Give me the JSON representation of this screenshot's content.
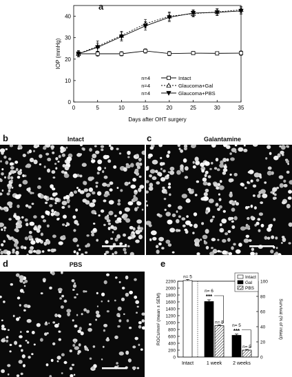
{
  "panels": {
    "a": {
      "letter": "a"
    },
    "b": {
      "letter": "b",
      "title": "Intact"
    },
    "c": {
      "letter": "c",
      "title": "Galantamine"
    },
    "d": {
      "letter": "d",
      "title": "PBS"
    },
    "e": {
      "letter": "e"
    }
  },
  "colors": {
    "micro_bg": "#0a0a0a",
    "cells": "#e8e8e8",
    "scale_bar": "#ffffff",
    "bar_intact": "#ffffff",
    "bar_gal": "#000000",
    "bar_pbs": "hatched"
  },
  "chart_data": [
    {
      "id": "a",
      "type": "line",
      "xlabel": "Days after OHT surgery",
      "ylabel": "IOP (mmHg)",
      "xlim": [
        0,
        35
      ],
      "ylim": [
        0,
        45
      ],
      "xticks": [
        0,
        5,
        10,
        15,
        20,
        25,
        30,
        35
      ],
      "yticks": [
        0,
        10,
        20,
        30,
        40
      ],
      "grid": false,
      "legend_position": "bottom-right",
      "series": [
        {
          "name": "Intact",
          "n_label": "n=4",
          "marker": "square-open",
          "x": [
            1,
            5,
            10,
            15,
            20,
            25,
            30,
            35
          ],
          "y": [
            22.5,
            22.5,
            22.5,
            23.8,
            22.6,
            22.8,
            22.7,
            22.8
          ],
          "err": [
            1.0,
            1.2,
            1.0,
            1.0,
            1.0,
            0.8,
            0.8,
            1.0
          ]
        },
        {
          "name": "Glaucoma+Gal",
          "n_label": "n=4",
          "marker": "triangle-open",
          "x": [
            1,
            5,
            10,
            15,
            20,
            25,
            30,
            35
          ],
          "y": [
            22.5,
            26.0,
            31.0,
            36.5,
            40.0,
            41.2,
            42.0,
            43.0
          ],
          "err": [
            1.5,
            2.5,
            2.0,
            2.0,
            2.0,
            1.5,
            1.5,
            1.5
          ]
        },
        {
          "name": "Glaucoma+PBS",
          "n_label": "n=4",
          "marker": "triangle-filled",
          "x": [
            1,
            5,
            10,
            15,
            20,
            25,
            30,
            35
          ],
          "y": [
            22.5,
            25.5,
            30.5,
            35.5,
            39.5,
            41.5,
            41.8,
            42.5
          ],
          "err": [
            1.5,
            2.0,
            2.0,
            2.0,
            2.0,
            1.5,
            1.5,
            1.5
          ]
        }
      ]
    },
    {
      "id": "e",
      "type": "bar",
      "ylabel": "RGCs/mm² (mean ± SEM)",
      "y2label": "Survival (% of intact)",
      "ylim": [
        0,
        2200
      ],
      "yticks": [
        0,
        200,
        400,
        600,
        800,
        1000,
        1200,
        1400,
        1600,
        1800,
        2000,
        2200
      ],
      "y2lim": [
        0,
        100
      ],
      "y2ticks": [
        0,
        20,
        40,
        60,
        80,
        100
      ],
      "categories": [
        "Intact",
        "1 week",
        "2 weeks"
      ],
      "legend_position": "top-right",
      "legend": [
        "Intact",
        "Gal",
        "PBS"
      ],
      "significance": "***",
      "bars": [
        {
          "category": "Intact",
          "series": "Intact",
          "value": 2220,
          "err": 30,
          "n": "n= 5"
        },
        {
          "category": "1 week",
          "series": "Gal",
          "value": 1610,
          "err": 50,
          "n": "n= 6",
          "sig": "***"
        },
        {
          "category": "1 week",
          "series": "PBS",
          "value": 910,
          "err": 25,
          "n": "n= 5"
        },
        {
          "category": "2 weeks",
          "series": "Gal",
          "value": 630,
          "err": 35,
          "n": "n= 5",
          "sig": "***"
        },
        {
          "category": "2 weeks",
          "series": "PBS",
          "value": 200,
          "err": 20,
          "n": "n= 5"
        }
      ]
    }
  ]
}
